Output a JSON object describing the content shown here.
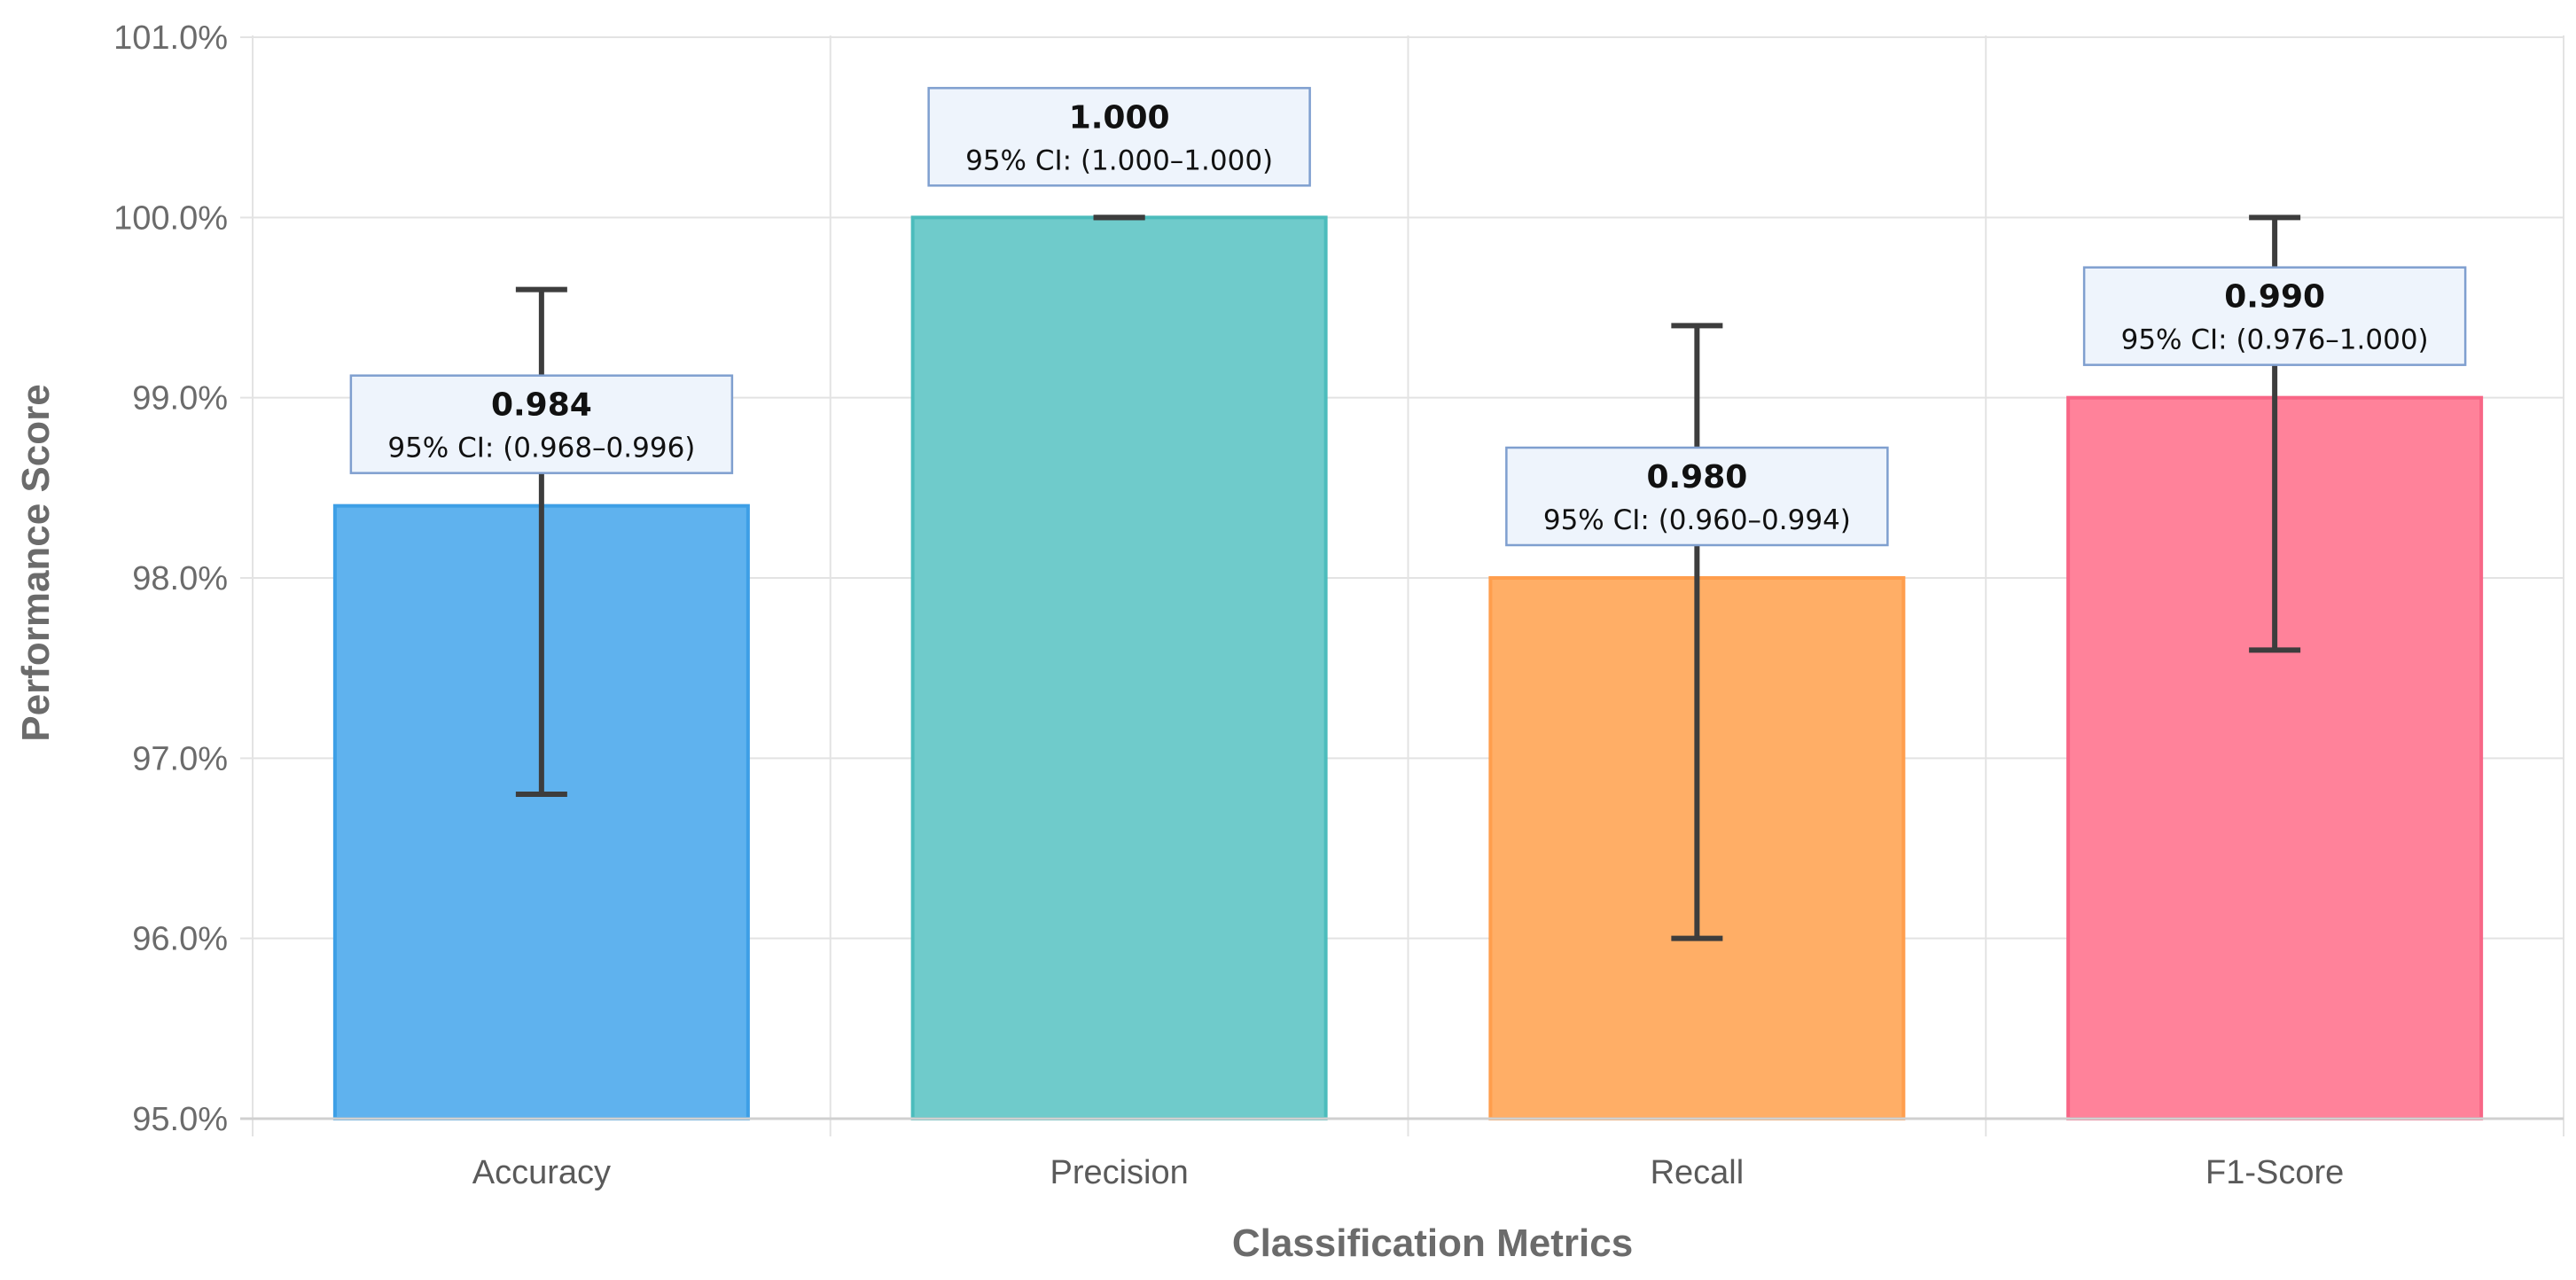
{
  "chart_data": {
    "type": "bar",
    "title": "",
    "xlabel": "Classification Metrics",
    "ylabel": "Performance Score",
    "ylim": [
      0.95,
      1.01
    ],
    "yticks": [
      0.95,
      0.96,
      0.97,
      0.98,
      0.99,
      1.0,
      1.01
    ],
    "ytick_labels": [
      "95.0%",
      "96.0%",
      "97.0%",
      "98.0%",
      "99.0%",
      "100.0%",
      "101.0%"
    ],
    "grid": true,
    "legend": "none",
    "categories": [
      "Accuracy",
      "Precision",
      "Recall",
      "F1-Score"
    ],
    "values": [
      0.984,
      1.0,
      0.98,
      0.99
    ],
    "ci_lower": [
      0.968,
      1.0,
      0.96,
      0.976
    ],
    "ci_upper": [
      0.996,
      1.0,
      0.994,
      1.0
    ],
    "colors": [
      "#5fb2ee",
      "#6fcbcb",
      "#ffae66",
      "#ff829a"
    ],
    "edge_colors": [
      "#3d9fe6",
      "#4cbcbc",
      "#ff9e4d",
      "#f86686"
    ],
    "annotations": [
      {
        "value": "0.984",
        "ci": "95% CI: (0.968–0.996)"
      },
      {
        "value": "1.000",
        "ci": "95% CI: (1.000–1.000)"
      },
      {
        "value": "0.980",
        "ci": "95% CI: (0.960–0.994)"
      },
      {
        "value": "0.990",
        "ci": "95% CI: (0.976–1.000)"
      }
    ]
  }
}
